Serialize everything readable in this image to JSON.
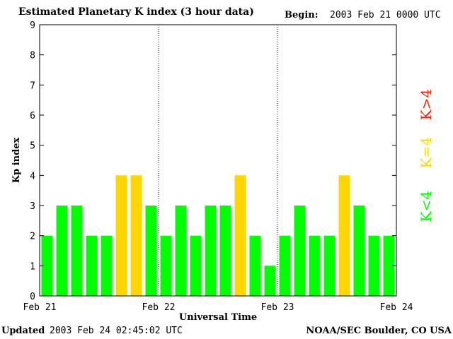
{
  "header": {
    "title": "Estimated Planetary K index (3 hour data)",
    "begin_label": "Begin:",
    "begin_value": "2003 Feb 21 0000 UTC"
  },
  "footer": {
    "updated_label": "Updated",
    "updated_value": "2003 Feb 24 02:45:02 UTC",
    "credit": "NOAA/SEC Boulder, CO USA"
  },
  "colors": {
    "low": "#00ff00",
    "mid": "#ffd700",
    "high": "#ff2000"
  },
  "legend": [
    {
      "label": "K<4",
      "color_key": "low"
    },
    {
      "label": "K=4",
      "color_key": "mid"
    },
    {
      "label": "K>4",
      "color_key": "high"
    }
  ],
  "chart_data": {
    "type": "bar",
    "title": "Estimated Planetary K index (3 hour data)",
    "xlabel": "Universal Time",
    "ylabel": "Kp index",
    "ylim": [
      0,
      9
    ],
    "yticks": [
      0,
      1,
      2,
      3,
      4,
      5,
      6,
      7,
      8,
      9
    ],
    "xtick_labels": [
      "Feb 21",
      "Feb 22",
      "Feb 23",
      "Feb 24"
    ],
    "day_separators_after_bar": [
      8,
      16
    ],
    "interval_hours": 3,
    "values": [
      2,
      3,
      3,
      2,
      2,
      4,
      4,
      3,
      2,
      3,
      2,
      3,
      3,
      4,
      2,
      1,
      2,
      3,
      2,
      2,
      4,
      3,
      2,
      2
    ]
  }
}
